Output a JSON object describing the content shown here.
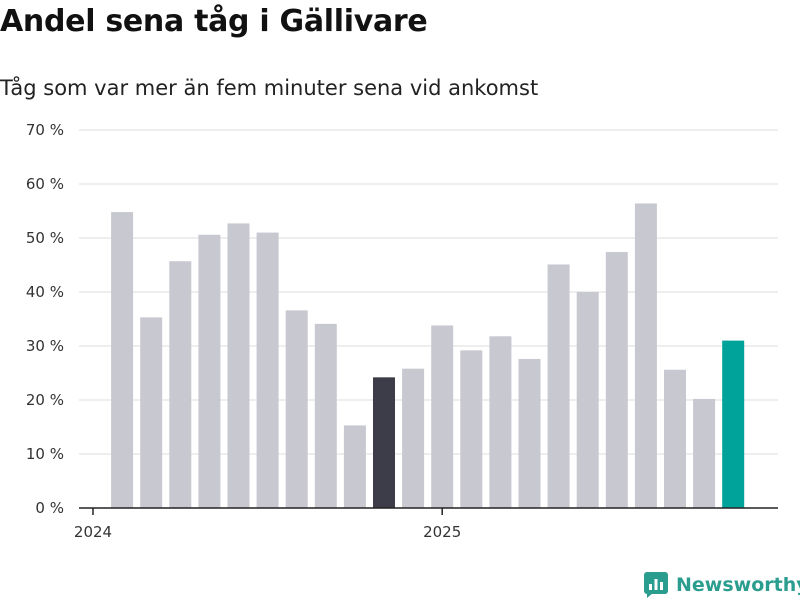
{
  "header": {
    "title": "Andel sena tåg i Gällivare",
    "subtitle": "Tåg som var mer än fem minuter sena vid ankomst"
  },
  "footer": {
    "brand": "Newsworthy"
  },
  "colors": {
    "bar_default": "#c8c8d0",
    "bar_highlight_dark": "#3d3d4a",
    "bar_highlight_latest": "#00a39a",
    "brand": "#2a9d8f",
    "grid": "#dddddd",
    "axis": "#222222"
  },
  "chart_data": {
    "type": "bar",
    "title": "Andel sena tåg i Gällivare",
    "subtitle": "Tåg som var mer än fem minuter sena vid ankomst",
    "xlabel": "",
    "ylabel": "",
    "ylim": [
      0,
      70
    ],
    "y_ticks": [
      0,
      10,
      20,
      30,
      40,
      50,
      60,
      70
    ],
    "y_tick_labels": [
      "0 %",
      "10 %",
      "20 %",
      "30 %",
      "40 %",
      "50 %",
      "60 %",
      "70 %"
    ],
    "x_tick_labels": [
      {
        "label": "2024",
        "at_index": 0
      },
      {
        "label": "2025",
        "at_index": 12
      }
    ],
    "categories": [
      "2024-01",
      "2024-02",
      "2024-03",
      "2024-04",
      "2024-05",
      "2024-06",
      "2024-07",
      "2024-08",
      "2024-09",
      "2024-10",
      "2024-11",
      "2024-12",
      "2025-01",
      "2025-02",
      "2025-03",
      "2025-04",
      "2025-05",
      "2025-06",
      "2025-07",
      "2025-08",
      "2025-09",
      "2025-10",
      "2025-11",
      "2025-12"
    ],
    "values": [
      null,
      54.8,
      35.3,
      45.7,
      50.6,
      52.7,
      51.0,
      36.6,
      34.1,
      15.3,
      24.2,
      25.8,
      33.8,
      29.2,
      31.8,
      27.6,
      45.1,
      40.0,
      47.4,
      56.4,
      25.6,
      20.2,
      31.0,
      null
    ],
    "highlight": {
      "dark_index": 10,
      "latest_index": 22
    },
    "grid": true
  }
}
